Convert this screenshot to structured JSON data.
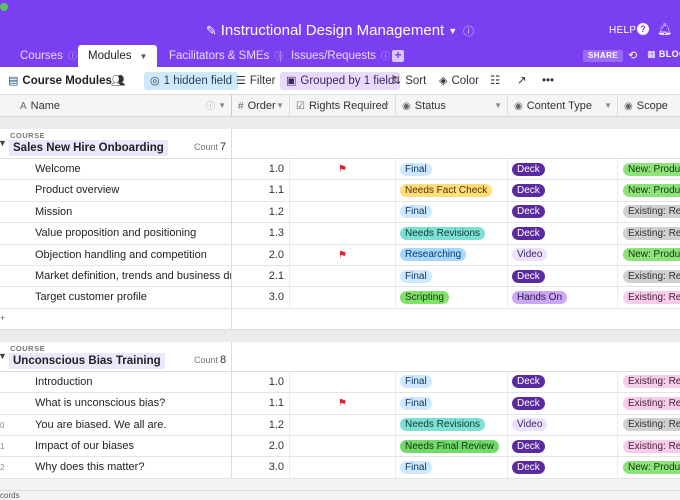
{
  "app": {
    "title": "Instructional Design Management",
    "help_label": "HELP"
  },
  "tabs": [
    {
      "label": "Courses",
      "active": false
    },
    {
      "label": "Modules",
      "active": true
    },
    {
      "label": "Facilitators & SMEs",
      "active": false
    },
    {
      "label": "Issues/Requests",
      "active": false
    }
  ],
  "header_actions": {
    "share_label": "SHARE",
    "blocks_label": "BLOCKS"
  },
  "toolbar": {
    "view_name": "Course Modules",
    "hidden_fields": "1 hidden field",
    "filter": "Filter",
    "grouped": "Grouped by 1 field",
    "sort": "Sort",
    "color": "Color"
  },
  "columns": {
    "name": "Name",
    "order": "Order",
    "rights": "Rights Required",
    "status": "Status",
    "content": "Content Type",
    "scope": "Scope"
  },
  "group_label": "COURSE",
  "count_label": "Count",
  "colors": {
    "accent": "#7b3ff2",
    "status": {
      "Final": {
        "bg": "#cfe8ff",
        "fg": "#0b3a66"
      },
      "Needs Fact Check": {
        "bg": "#ffdd7a",
        "fg": "#4d3300"
      },
      "Needs Revisions": {
        "bg": "#7ee0d3",
        "fg": "#0b3b35"
      },
      "Researching": {
        "bg": "#a6d8ff",
        "fg": "#0b3a66"
      },
      "Scripting": {
        "bg": "#82e06b",
        "fg": "#143b0a"
      },
      "Needs Final Review": {
        "bg": "#72d96a",
        "fg": "#0f3a0b"
      }
    },
    "content": {
      "Deck": {
        "bg": "#5a2aa0",
        "fg": "#ffffff"
      },
      "Video": {
        "bg": "#ede2fd",
        "fg": "#3b2566"
      },
      "Hands On": {
        "bg": "#c9a8f5",
        "fg": "#2b1450"
      }
    },
    "scope": {
      "New: Product": {
        "bg": "#8ee27b",
        "fg": "#143b0a"
      },
      "Existing: Re-": {
        "bg": "#d0d0d0",
        "fg": "#333333"
      },
      "Existing: Re-u": {
        "bg": "#f6cde9",
        "fg": "#4a1a3b"
      }
    }
  },
  "groups": [
    {
      "name": "Sales New Hire Onboarding",
      "count": "7",
      "rows": [
        {
          "idx": "",
          "name": "Welcome",
          "order": "1.0",
          "flag": true,
          "status": "Final",
          "content": "Deck",
          "scope": "New: Product"
        },
        {
          "idx": "",
          "name": "Product overview",
          "order": "1.1",
          "flag": false,
          "status": "Needs Fact Check",
          "content": "Deck",
          "scope": "New: Product"
        },
        {
          "idx": "",
          "name": "Mission",
          "order": "1.2",
          "flag": false,
          "status": "Final",
          "content": "Deck",
          "scope": "Existing: Re-"
        },
        {
          "idx": "",
          "name": "Value proposition and positioning",
          "order": "1.3",
          "flag": false,
          "status": "Needs Revisions",
          "content": "Deck",
          "scope": "Existing: Re-"
        },
        {
          "idx": "",
          "name": "Objection handling and competition",
          "order": "2.0",
          "flag": true,
          "status": "Researching",
          "content": "Video",
          "scope": "New: Product"
        },
        {
          "idx": "",
          "name": "Market definition, trends and business drivers",
          "order": "2.1",
          "flag": false,
          "status": "Final",
          "content": "Deck",
          "scope": "Existing: Re-"
        },
        {
          "idx": "",
          "name": "Target customer profile",
          "order": "3.0",
          "flag": false,
          "status": "Scripting",
          "content": "Hands On",
          "scope": "Existing: Re-u"
        }
      ]
    },
    {
      "name": "Unconscious Bias Training",
      "count": "8",
      "rows": [
        {
          "idx": "",
          "name": "Introduction",
          "order": "1.0",
          "flag": false,
          "status": "Final",
          "content": "Deck",
          "scope": "Existing: Re-u"
        },
        {
          "idx": "",
          "name": "What is unconscious bias?",
          "order": "1.1",
          "flag": true,
          "status": "Final",
          "content": "Deck",
          "scope": "Existing: Re-u"
        },
        {
          "idx": "0",
          "name": "You are biased. We all are.",
          "order": "1.2",
          "flag": false,
          "status": "Needs Revisions",
          "content": "Video",
          "scope": "Existing: Re-"
        },
        {
          "idx": "1",
          "name": "Impact of our biases",
          "order": "2.0",
          "flag": false,
          "status": "Needs Final Review",
          "content": "Deck",
          "scope": "Existing: Re-u"
        },
        {
          "idx": "2",
          "name": "Why does this matter?",
          "order": "3.0",
          "flag": false,
          "status": "Final",
          "content": "Deck",
          "scope": "New: Product"
        }
      ]
    }
  ],
  "footer": {
    "records": "cords"
  }
}
